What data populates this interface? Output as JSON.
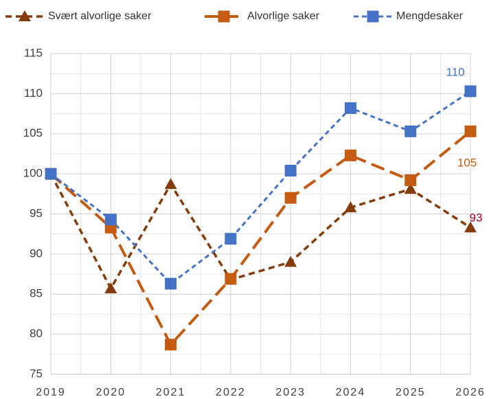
{
  "chart_data": {
    "type": "line",
    "categories": [
      "2019",
      "2020",
      "2021",
      "2022",
      "2023",
      "2024",
      "2025",
      "2026"
    ],
    "series": [
      {
        "name": "Svært alvorlige saker",
        "color": "#843C0C",
        "marker": "triangle",
        "values": [
          100,
          85.7,
          98.7,
          86.8,
          89.0,
          95.8,
          98.1,
          93.3
        ],
        "value_labels": [
          null,
          null,
          null,
          null,
          null,
          null,
          null,
          "93"
        ]
      },
      {
        "name": "Alvorlige saker",
        "color": "#C55A11",
        "marker": "square",
        "values": [
          100,
          93.3,
          78.7,
          86.9,
          97.0,
          102.3,
          99.2,
          105.3
        ],
        "value_labels": [
          null,
          null,
          null,
          null,
          null,
          null,
          null,
          "105"
        ]
      },
      {
        "name": "Mengdesaker",
        "color": "#4472C4",
        "marker": "square",
        "values": [
          100,
          94.3,
          86.3,
          91.9,
          100.4,
          108.2,
          105.3,
          110.3
        ],
        "value_labels": [
          null,
          null,
          null,
          null,
          null,
          null,
          null,
          "110"
        ]
      }
    ],
    "ylim": [
      75,
      115
    ],
    "yticks": [
      75,
      80,
      85,
      90,
      95,
      100,
      105,
      110,
      115
    ],
    "grid": true,
    "legend": "top"
  }
}
